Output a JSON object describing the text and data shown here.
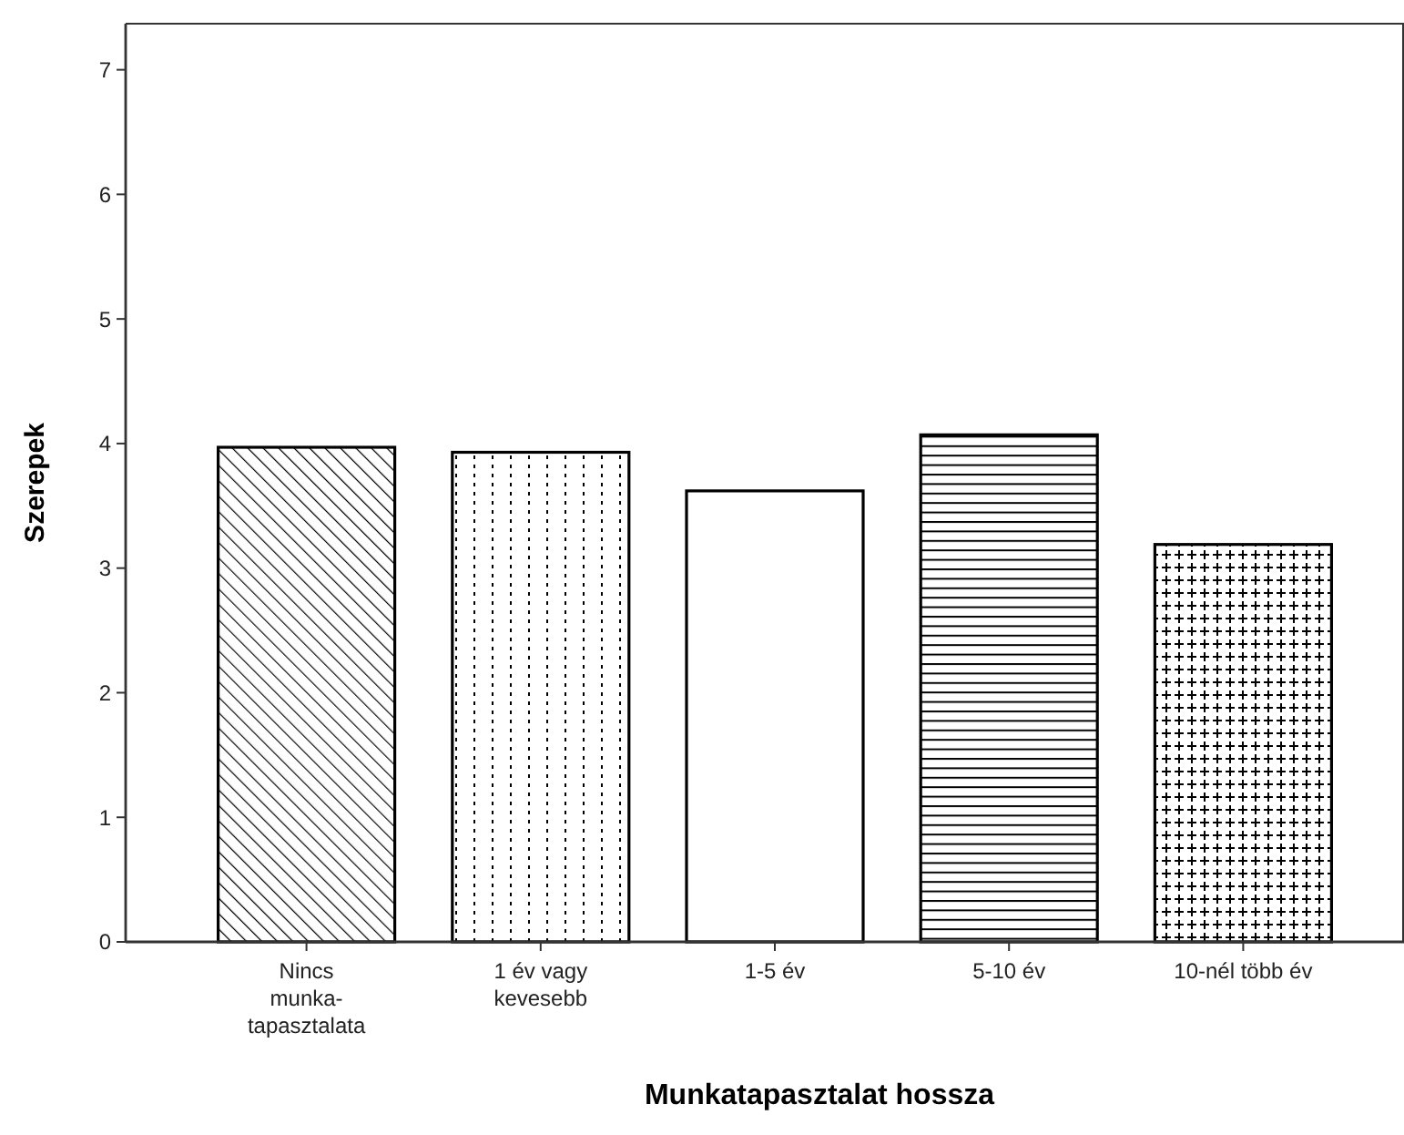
{
  "chart_data": {
    "type": "bar",
    "xlabel": "Munkatapasztalat hossza",
    "ylabel": "Szerepek",
    "categories": [
      "Nincs\nmunka-\ntapasztalata",
      "1 év vagy\nkevesebb",
      "1-5 év",
      "5-10 év",
      "10-nél több év"
    ],
    "values": [
      3.97,
      3.93,
      3.62,
      4.07,
      3.19
    ],
    "color": "#000000",
    "ylim": [
      0,
      7.37
    ],
    "yticks": [
      0,
      1,
      2,
      3,
      4,
      5,
      6,
      7
    ],
    "grid": false
  }
}
